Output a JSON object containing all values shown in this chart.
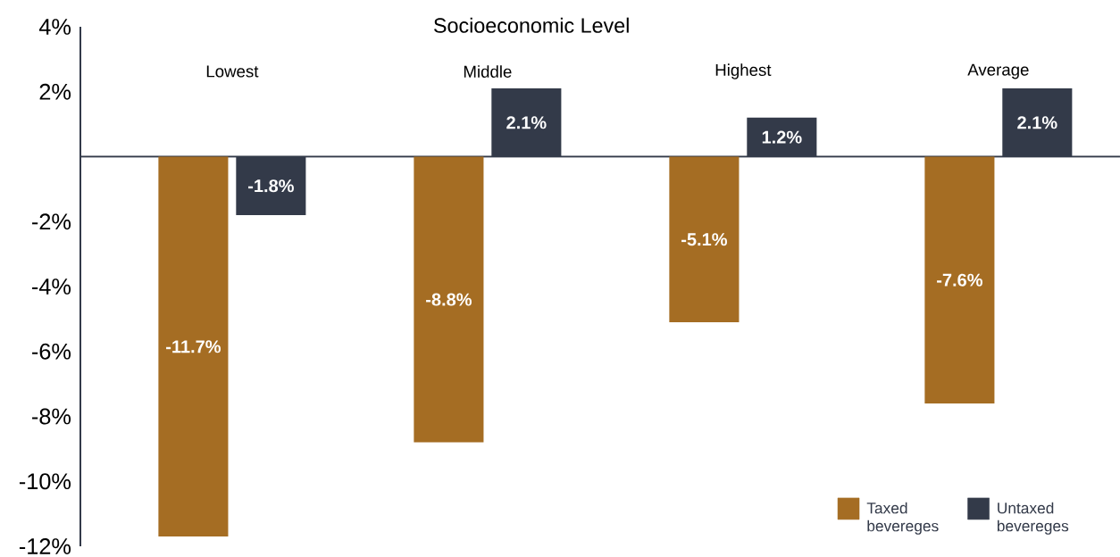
{
  "chart_data": {
    "type": "bar",
    "xlabel": "Socioeconomic Level",
    "categories": [
      "Lowest",
      "Middle",
      "Highest",
      "Average"
    ],
    "series": [
      {
        "name": "Taxed bevereges",
        "color": "#a56d23",
        "values": [
          -11.7,
          -8.8,
          -5.1,
          -7.6
        ],
        "value_labels": [
          "-11.7%",
          "-8.8%",
          "-5.1%",
          "-7.6%"
        ]
      },
      {
        "name": "Untaxed bevereges",
        "color": "#333a49",
        "values": [
          -1.8,
          2.1,
          1.2,
          2.1
        ],
        "value_labels": [
          "-1.8%",
          "2.1%",
          "1.2%",
          "2.1%"
        ]
      }
    ],
    "ylim": [
      -12,
      4
    ],
    "yticks": [
      {
        "value": 4,
        "label": "4%"
      },
      {
        "value": 2,
        "label": "2%"
      },
      {
        "value": -2,
        "label": "-2%"
      },
      {
        "value": -4,
        "label": "-4%"
      },
      {
        "value": -6,
        "label": "-6%"
      },
      {
        "value": -8,
        "label": "-8%"
      },
      {
        "value": -10,
        "label": "-10%"
      },
      {
        "value": -12,
        "label": "-12%"
      }
    ],
    "legend": "bottom right"
  }
}
